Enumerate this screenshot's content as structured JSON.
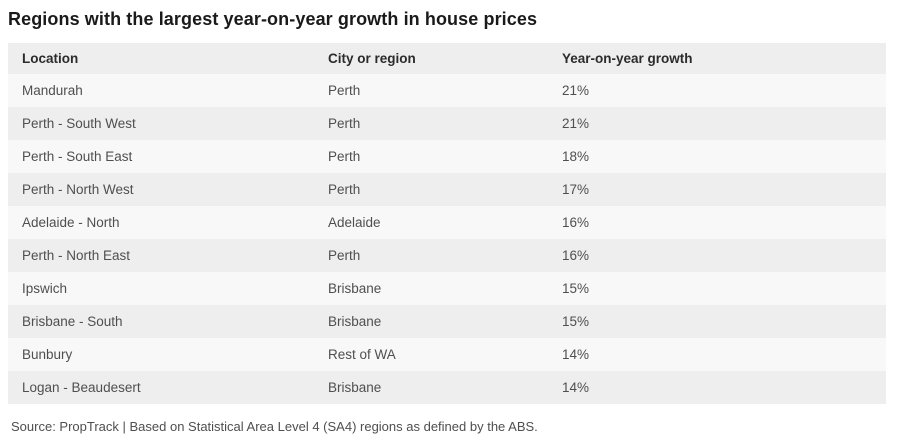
{
  "page": {
    "title": "Regions with the largest year-on-year growth in house prices",
    "footer": "Source: PropTrack | Based on Statistical Area Level 4 (SA4) regions as defined by the ABS."
  },
  "colors": {
    "page_bg": "#ffffff",
    "title_text": "#1a1a1a",
    "header_bg": "#eeeeee",
    "header_text": "#2b2b2b",
    "row_odd_bg": "#f8f8f8",
    "row_even_bg": "#eeeeee",
    "body_text": "#4f4f4f"
  },
  "table": {
    "columns": {
      "location": "Location",
      "city": "City or region",
      "growth": "Year-on-year growth"
    },
    "rows": [
      {
        "location": "Mandurah",
        "city": "Perth",
        "growth": "21%"
      },
      {
        "location": "Perth - South West",
        "city": "Perth",
        "growth": "21%"
      },
      {
        "location": "Perth - South East",
        "city": "Perth",
        "growth": "18%"
      },
      {
        "location": "Perth - North West",
        "city": "Perth",
        "growth": "17%"
      },
      {
        "location": "Adelaide - North",
        "city": "Adelaide",
        "growth": "16%"
      },
      {
        "location": "Perth - North East",
        "city": "Perth",
        "growth": "16%"
      },
      {
        "location": "Ipswich",
        "city": "Brisbane",
        "growth": "15%"
      },
      {
        "location": "Brisbane - South",
        "city": "Brisbane",
        "growth": "15%"
      },
      {
        "location": "Bunbury",
        "city": "Rest of WA",
        "growth": "14%"
      },
      {
        "location": "Logan - Beaudesert",
        "city": "Brisbane",
        "growth": "14%"
      }
    ]
  },
  "chart_data": {
    "type": "table",
    "title": "Regions with the largest year-on-year growth in house prices",
    "columns": [
      "Location",
      "City or region",
      "Year-on-year growth"
    ],
    "rows": [
      [
        "Mandurah",
        "Perth",
        "21%"
      ],
      [
        "Perth - South West",
        "Perth",
        "21%"
      ],
      [
        "Perth - South East",
        "Perth",
        "18%"
      ],
      [
        "Perth - North West",
        "Perth",
        "17%"
      ],
      [
        "Adelaide - North",
        "Adelaide",
        "16%"
      ],
      [
        "Perth - North East",
        "Perth",
        "16%"
      ],
      [
        "Ipswich",
        "Brisbane",
        "15%"
      ],
      [
        "Brisbane - South",
        "Brisbane",
        "15%"
      ],
      [
        "Bunbury",
        "Rest of WA",
        "14%"
      ],
      [
        "Logan - Beaudesert",
        "Brisbane",
        "14%"
      ]
    ],
    "growth_values_pct": [
      21,
      21,
      18,
      17,
      16,
      16,
      15,
      15,
      14,
      14
    ],
    "source": "Source: PropTrack | Based on Statistical Area Level 4 (SA4) regions as defined by the ABS."
  }
}
